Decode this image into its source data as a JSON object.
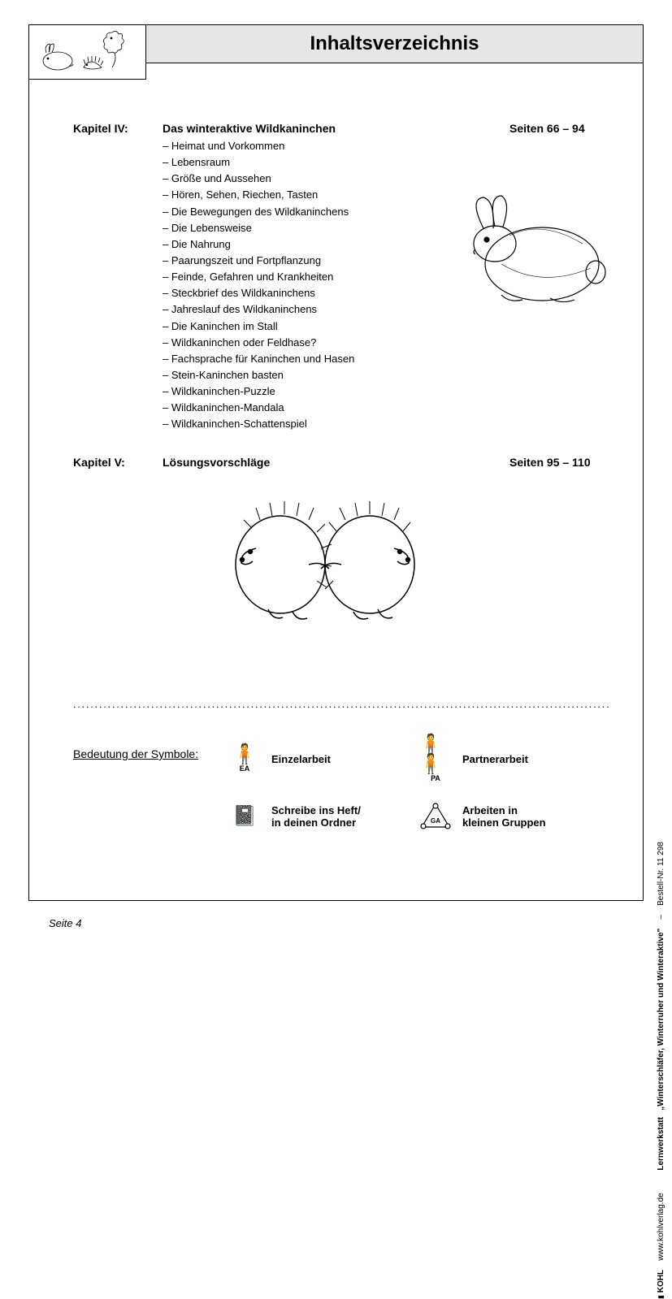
{
  "header": {
    "title": "Inhaltsverzeichnis",
    "icon_desc": "Eichhörnchen, Kaninchen, Igel"
  },
  "chapterIV": {
    "label": "Kapitel IV:",
    "title": "Das winteraktive Wildkaninchen",
    "pages": "Seiten   66 – 94",
    "items": [
      "– Heimat und Vorkommen",
      "– Lebensraum",
      "– Größe und Aussehen",
      "– Hören, Sehen, Riechen, Tasten",
      "– Die Bewegungen des Wildkaninchens",
      "– Die Lebensweise",
      "– Die Nahrung",
      "– Paarungszeit und Fortpflanzung",
      "– Feinde, Gefahren und Krankheiten",
      "– Steckbrief des Wildkaninchens",
      "– Jahreslauf des Wildkaninchens",
      "– Die Kaninchen im Stall",
      "– Wildkaninchen oder Feldhase?",
      "– Fachsprache für Kaninchen und Hasen",
      "– Stein-Kaninchen basten",
      "– Wildkaninchen-Puzzle",
      "– Wildkaninchen-Mandala",
      "– Wildkaninchen-Schattenspiel"
    ]
  },
  "chapterV": {
    "label": "Kapitel V:",
    "title": "Lösungsvorschläge",
    "pages": "Seiten   95 – 110"
  },
  "symbolsTitle": "Bedeutung der Symbole:",
  "symbols": {
    "ea": {
      "code": "EA",
      "label": "Einzelarbeit"
    },
    "pa": {
      "code": "PA",
      "label": "Partnerarbeit"
    },
    "heft": {
      "label": "Schreibe ins Heft/\nin deinen Ordner"
    },
    "ga": {
      "code": "GA",
      "label": "Arbeiten in\nkleinen Gruppen"
    }
  },
  "side": {
    "brand": "KOHL",
    "url": "www.kohlverlag.de",
    "series": "Lernwerkstatt",
    "title": "„Winterschläfer, Winterruher und Winteraktive\"",
    "dash": "–",
    "order": "Bestell-Nr. 11 298"
  },
  "footer": {
    "page": "Seite 4"
  },
  "colors": {
    "header_bg": "#e6e6e6",
    "border": "#000000",
    "text": "#000000"
  }
}
